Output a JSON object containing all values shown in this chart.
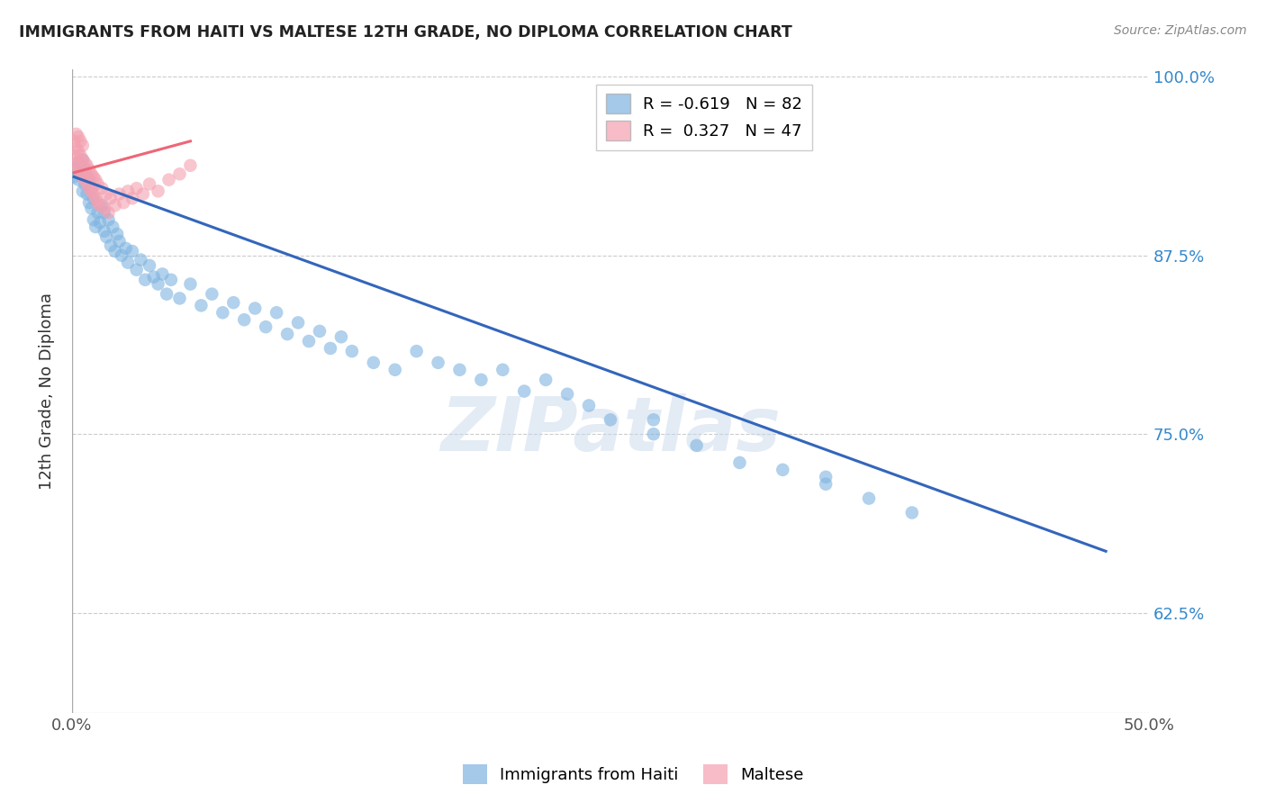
{
  "title": "IMMIGRANTS FROM HAITI VS MALTESE 12TH GRADE, NO DIPLOMA CORRELATION CHART",
  "source": "Source: ZipAtlas.com",
  "ylabel": "12th Grade, No Diploma",
  "xmin": 0.0,
  "xmax": 0.5,
  "ymin": 0.555,
  "ymax": 1.005,
  "xticks": [
    0.0,
    0.1,
    0.2,
    0.3,
    0.4,
    0.5
  ],
  "xticklabels": [
    "0.0%",
    "",
    "",
    "",
    "",
    "50.0%"
  ],
  "yticks": [
    0.625,
    0.75,
    0.875,
    1.0
  ],
  "yticklabels": [
    "62.5%",
    "75.0%",
    "87.5%",
    "100.0%"
  ],
  "haiti_R": -0.619,
  "haiti_N": 82,
  "maltese_R": 0.327,
  "maltese_N": 47,
  "haiti_color": "#7EB3E0",
  "maltese_color": "#F4A0B0",
  "haiti_line_color": "#3366BB",
  "maltese_line_color": "#EE6677",
  "watermark": "ZIPatlas",
  "legend_label_haiti": "Immigrants from Haiti",
  "legend_label_maltese": "Maltese",
  "haiti_x": [
    0.001,
    0.002,
    0.003,
    0.003,
    0.004,
    0.004,
    0.005,
    0.005,
    0.006,
    0.006,
    0.007,
    0.007,
    0.008,
    0.008,
    0.009,
    0.009,
    0.01,
    0.01,
    0.011,
    0.012,
    0.013,
    0.014,
    0.015,
    0.015,
    0.016,
    0.017,
    0.018,
    0.019,
    0.02,
    0.021,
    0.022,
    0.023,
    0.025,
    0.026,
    0.028,
    0.03,
    0.032,
    0.034,
    0.036,
    0.038,
    0.04,
    0.042,
    0.044,
    0.046,
    0.05,
    0.055,
    0.06,
    0.065,
    0.07,
    0.075,
    0.08,
    0.085,
    0.09,
    0.095,
    0.1,
    0.105,
    0.11,
    0.115,
    0.12,
    0.125,
    0.13,
    0.14,
    0.15,
    0.16,
    0.17,
    0.18,
    0.19,
    0.2,
    0.21,
    0.22,
    0.23,
    0.24,
    0.25,
    0.27,
    0.29,
    0.31,
    0.33,
    0.35,
    0.37,
    0.39,
    0.27,
    0.35
  ],
  "haiti_y": [
    0.93,
    0.935,
    0.928,
    0.94,
    0.932,
    0.938,
    0.92,
    0.942,
    0.925,
    0.935,
    0.918,
    0.93,
    0.912,
    0.928,
    0.908,
    0.922,
    0.9,
    0.915,
    0.895,
    0.905,
    0.898,
    0.91,
    0.892,
    0.905,
    0.888,
    0.9,
    0.882,
    0.895,
    0.878,
    0.89,
    0.885,
    0.875,
    0.88,
    0.87,
    0.878,
    0.865,
    0.872,
    0.858,
    0.868,
    0.86,
    0.855,
    0.862,
    0.848,
    0.858,
    0.845,
    0.855,
    0.84,
    0.848,
    0.835,
    0.842,
    0.83,
    0.838,
    0.825,
    0.835,
    0.82,
    0.828,
    0.815,
    0.822,
    0.81,
    0.818,
    0.808,
    0.8,
    0.795,
    0.808,
    0.8,
    0.795,
    0.788,
    0.795,
    0.78,
    0.788,
    0.778,
    0.77,
    0.76,
    0.75,
    0.742,
    0.73,
    0.725,
    0.715,
    0.705,
    0.695,
    0.76,
    0.72
  ],
  "maltese_x": [
    0.001,
    0.001,
    0.001,
    0.002,
    0.002,
    0.002,
    0.003,
    0.003,
    0.003,
    0.004,
    0.004,
    0.004,
    0.005,
    0.005,
    0.005,
    0.006,
    0.006,
    0.007,
    0.007,
    0.008,
    0.008,
    0.009,
    0.009,
    0.01,
    0.01,
    0.011,
    0.011,
    0.012,
    0.012,
    0.013,
    0.014,
    0.015,
    0.016,
    0.017,
    0.018,
    0.02,
    0.022,
    0.024,
    0.026,
    0.028,
    0.03,
    0.033,
    0.036,
    0.04,
    0.045,
    0.05,
    0.055
  ],
  "maltese_y": [
    0.938,
    0.945,
    0.955,
    0.94,
    0.95,
    0.96,
    0.935,
    0.948,
    0.958,
    0.932,
    0.945,
    0.955,
    0.93,
    0.942,
    0.952,
    0.928,
    0.94,
    0.925,
    0.938,
    0.922,
    0.935,
    0.92,
    0.932,
    0.918,
    0.93,
    0.915,
    0.928,
    0.912,
    0.925,
    0.91,
    0.922,
    0.908,
    0.918,
    0.905,
    0.915,
    0.91,
    0.918,
    0.912,
    0.92,
    0.915,
    0.922,
    0.918,
    0.925,
    0.92,
    0.928,
    0.932,
    0.938
  ],
  "haiti_trendline_x": [
    0.001,
    0.48
  ],
  "haiti_trendline_y": [
    0.93,
    0.668
  ],
  "maltese_trendline_x": [
    0.001,
    0.055
  ],
  "maltese_trendline_y": [
    0.933,
    0.955
  ]
}
